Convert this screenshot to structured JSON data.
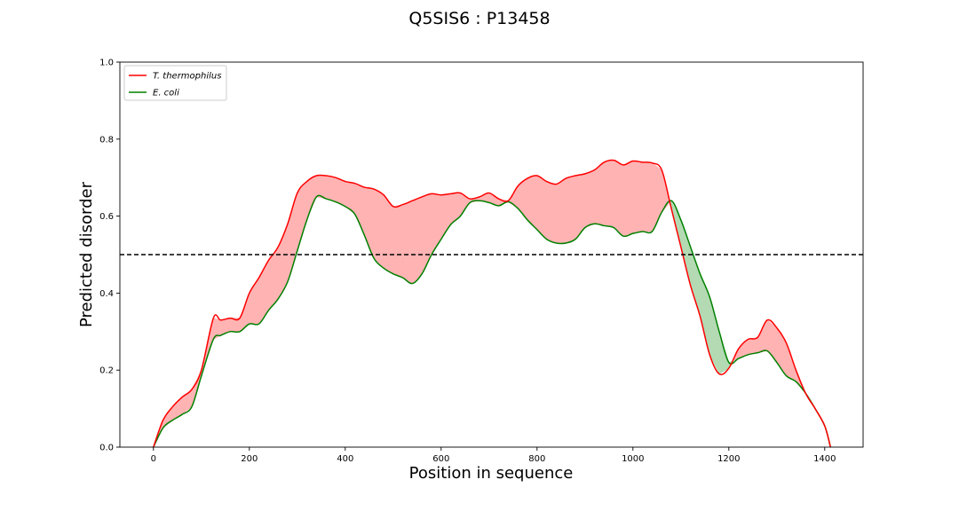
{
  "chart_data": {
    "type": "line",
    "title": "Q5SIS6 : P13458",
    "xlabel": "Position in sequence",
    "ylabel": "Predicted disorder",
    "xlim": [
      -70,
      1480
    ],
    "ylim": [
      0.0,
      1.0
    ],
    "xticks": [
      0,
      200,
      400,
      600,
      800,
      1000,
      1200,
      1400
    ],
    "yticks": [
      0.0,
      0.2,
      0.4,
      0.6,
      0.8,
      1.0
    ],
    "xtick_labels": [
      "0",
      "200",
      "400",
      "600",
      "800",
      "1000",
      "1200",
      "1400"
    ],
    "ytick_labels": [
      "0.0",
      "0.2",
      "0.4",
      "0.6",
      "0.8",
      "1.0"
    ],
    "threshold": 0.5,
    "grid": false,
    "legend_position": "top-left",
    "fill_colors": {
      "series1_above": "#ffb3b3",
      "series2_above": "#b3dab3"
    },
    "x": [
      0,
      20,
      40,
      60,
      80,
      100,
      125,
      140,
      160,
      180,
      200,
      220,
      240,
      260,
      280,
      300,
      320,
      340,
      360,
      380,
      400,
      420,
      440,
      460,
      480,
      500,
      520,
      540,
      560,
      580,
      600,
      620,
      640,
      660,
      680,
      700,
      720,
      740,
      760,
      780,
      800,
      820,
      840,
      860,
      880,
      900,
      920,
      940,
      960,
      980,
      1000,
      1020,
      1040,
      1060,
      1080,
      1100,
      1120,
      1140,
      1160,
      1180,
      1200,
      1220,
      1240,
      1260,
      1280,
      1300,
      1320,
      1340,
      1360,
      1380,
      1400,
      1412
    ],
    "series": [
      {
        "name": "T. thermophilus",
        "color": "#ff0000",
        "values": [
          0.0,
          0.07,
          0.105,
          0.13,
          0.15,
          0.2,
          0.335,
          0.33,
          0.335,
          0.335,
          0.4,
          0.44,
          0.485,
          0.52,
          0.58,
          0.66,
          0.69,
          0.705,
          0.705,
          0.7,
          0.69,
          0.685,
          0.675,
          0.67,
          0.655,
          0.625,
          0.63,
          0.64,
          0.65,
          0.658,
          0.655,
          0.658,
          0.66,
          0.645,
          0.65,
          0.66,
          0.645,
          0.64,
          0.678,
          0.698,
          0.705,
          0.69,
          0.683,
          0.698,
          0.705,
          0.71,
          0.72,
          0.74,
          0.745,
          0.733,
          0.743,
          0.74,
          0.738,
          0.72,
          0.62,
          0.52,
          0.42,
          0.34,
          0.24,
          0.19,
          0.205,
          0.255,
          0.28,
          0.285,
          0.33,
          0.31,
          0.27,
          0.2,
          0.14,
          0.1,
          0.055,
          0.0
        ]
      },
      {
        "name": "E. coli",
        "color": "#008000",
        "values": [
          0.0,
          0.05,
          0.07,
          0.085,
          0.105,
          0.185,
          0.28,
          0.29,
          0.3,
          0.3,
          0.32,
          0.32,
          0.355,
          0.385,
          0.43,
          0.51,
          0.59,
          0.65,
          0.645,
          0.637,
          0.625,
          0.605,
          0.55,
          0.49,
          0.465,
          0.45,
          0.44,
          0.425,
          0.45,
          0.5,
          0.54,
          0.578,
          0.6,
          0.635,
          0.64,
          0.635,
          0.627,
          0.637,
          0.62,
          0.59,
          0.565,
          0.54,
          0.53,
          0.53,
          0.54,
          0.57,
          0.58,
          0.575,
          0.57,
          0.548,
          0.555,
          0.56,
          0.56,
          0.61,
          0.64,
          0.59,
          0.52,
          0.45,
          0.39,
          0.3,
          0.22,
          0.23,
          0.24,
          0.245,
          0.25,
          0.22,
          0.185,
          0.17,
          0.14,
          0.1,
          0.055,
          0.0
        ]
      }
    ]
  }
}
